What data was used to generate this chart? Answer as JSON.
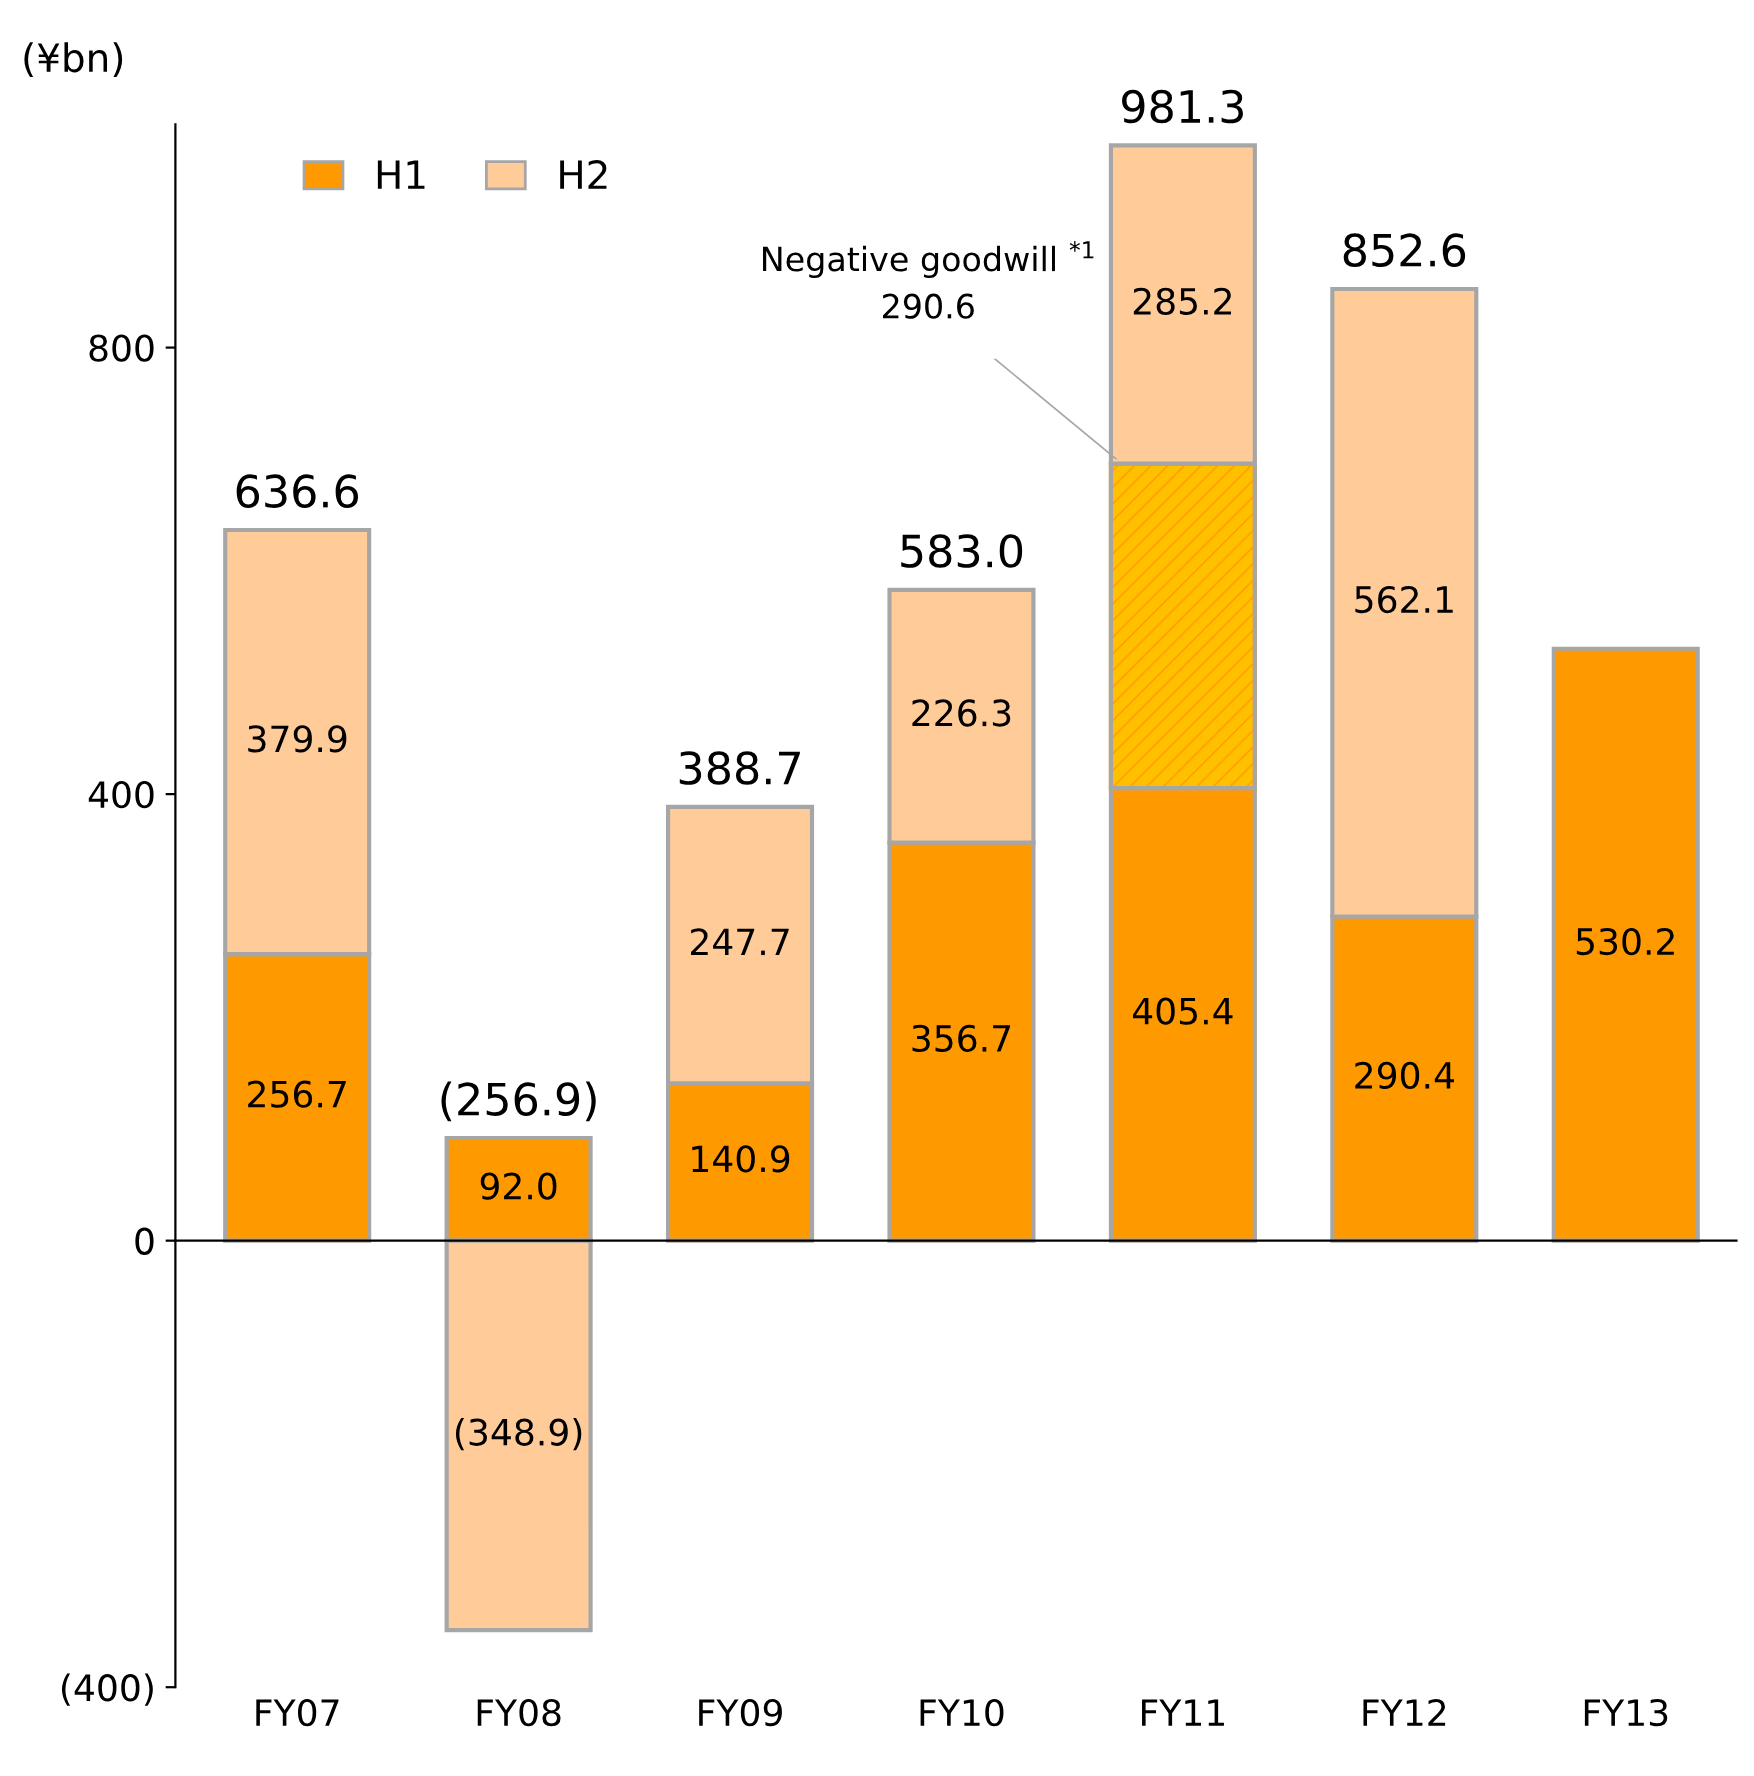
{
  "chart_data": {
    "type": "bar",
    "stacked": true,
    "ylabel": "(¥bn)",
    "categories": [
      "FY07",
      "FY08",
      "FY09",
      "FY10",
      "FY11",
      "FY12",
      "FY13"
    ],
    "series": [
      {
        "name": "H1",
        "color": "#ff9900",
        "values": [
          256.7,
          92.0,
          140.9,
          356.7,
          405.4,
          290.4,
          530.2
        ],
        "value_labels": [
          "256.7",
          "92.0",
          "140.9",
          "356.7",
          "405.4",
          "290.4",
          "530.2"
        ]
      },
      {
        "color": "#ffa000",
        "values": [
          null,
          null,
          null,
          null,
          290.6,
          null,
          null
        ]
      },
      {
        "name": "H2",
        "color": "#ffcc99",
        "values": [
          379.9,
          -348.9,
          247.7,
          226.3,
          285.2,
          562.1,
          null
        ],
        "value_labels": [
          "379.9",
          "(348.9)",
          "247.7",
          "226.3",
          "285.2",
          "562.1",
          null
        ]
      }
    ],
    "totals": [
      "636.6",
      "(256.9)",
      "388.7",
      "583.0",
      "981.3",
      "852.6",
      null
    ],
    "annotations": [
      "Negative goodwill $^{*1}$",
      "290.6"
    ],
    "ylim": [
      -400,
      1000
    ],
    "yticks": [
      {
        "value": -400,
        "label": "(400)"
      },
      0,
      400,
      800
    ],
    "legend": "top left"
  }
}
